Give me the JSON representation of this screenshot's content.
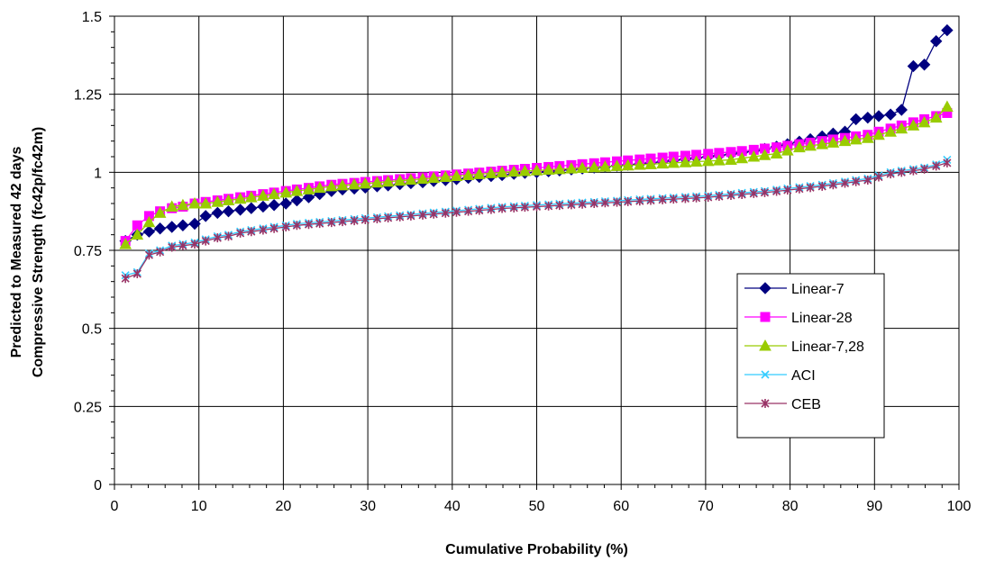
{
  "chart_data": {
    "type": "line",
    "title": "",
    "xlabel": "Cumulative Probability (%)",
    "ylabel_lines": [
      "Predicted to Measured 42 days",
      "Compressive Strength (fc42p/fc42m)"
    ],
    "xlim": [
      0,
      100
    ],
    "ylim": [
      0,
      1.5
    ],
    "x_ticks": [
      0,
      10,
      20,
      30,
      40,
      50,
      60,
      70,
      80,
      90,
      100
    ],
    "x_tick_labels": [
      "0",
      "10",
      "20",
      "30",
      "40",
      "50",
      "60",
      "70",
      "80",
      "90",
      "100"
    ],
    "y_ticks": [
      0,
      0.25,
      0.5,
      0.75,
      1,
      1.25,
      1.5
    ],
    "y_tick_labels": [
      "0",
      "0.25",
      "0.5",
      "0.75",
      "1",
      "1.25",
      "1.5"
    ],
    "grid": true,
    "legend_position": "right-center",
    "series": [
      {
        "name": "Linear-7",
        "color": "#000080",
        "marker": "diamond",
        "x": [
          1.3,
          2.7,
          4.1,
          5.4,
          6.8,
          8.1,
          9.5,
          10.8,
          12.2,
          13.5,
          14.9,
          16.2,
          17.6,
          18.9,
          20.3,
          21.6,
          23.0,
          24.3,
          25.7,
          27.0,
          28.4,
          29.7,
          31.1,
          32.4,
          33.8,
          35.1,
          36.5,
          37.8,
          39.2,
          40.5,
          41.9,
          43.2,
          44.6,
          45.9,
          47.3,
          48.6,
          50.0,
          51.4,
          52.7,
          54.1,
          55.4,
          56.8,
          58.1,
          59.5,
          60.8,
          62.2,
          63.5,
          64.9,
          66.2,
          67.6,
          68.9,
          70.3,
          71.6,
          73.0,
          74.3,
          75.7,
          77.0,
          78.4,
          79.7,
          81.1,
          82.4,
          83.8,
          85.1,
          86.5,
          87.8,
          89.2,
          90.5,
          91.9,
          93.2,
          94.6,
          95.9,
          97.3,
          98.6
        ],
        "y": [
          0.78,
          0.8,
          0.81,
          0.82,
          0.825,
          0.83,
          0.835,
          0.86,
          0.87,
          0.875,
          0.88,
          0.885,
          0.89,
          0.895,
          0.9,
          0.91,
          0.92,
          0.93,
          0.94,
          0.945,
          0.948,
          0.951,
          0.955,
          0.958,
          0.962,
          0.965,
          0.968,
          0.972,
          0.975,
          0.978,
          0.982,
          0.985,
          0.988,
          0.991,
          0.995,
          0.998,
          1.0,
          1.003,
          1.006,
          1.009,
          1.012,
          1.015,
          1.018,
          1.021,
          1.024,
          1.027,
          1.03,
          1.034,
          1.038,
          1.042,
          1.046,
          1.05,
          1.054,
          1.058,
          1.063,
          1.068,
          1.075,
          1.082,
          1.09,
          1.098,
          1.106,
          1.115,
          1.124,
          1.13,
          1.17,
          1.175,
          1.18,
          1.185,
          1.2,
          1.34,
          1.345,
          1.42,
          1.455
        ]
      },
      {
        "name": "Linear-28",
        "color": "#FF00FF",
        "marker": "square",
        "x": [
          1.3,
          2.7,
          4.1,
          5.4,
          6.8,
          8.1,
          9.5,
          10.8,
          12.2,
          13.5,
          14.9,
          16.2,
          17.6,
          18.9,
          20.3,
          21.6,
          23.0,
          24.3,
          25.7,
          27.0,
          28.4,
          29.7,
          31.1,
          32.4,
          33.8,
          35.1,
          36.5,
          37.8,
          39.2,
          40.5,
          41.9,
          43.2,
          44.6,
          45.9,
          47.3,
          48.6,
          50.0,
          51.4,
          52.7,
          54.1,
          55.4,
          56.8,
          58.1,
          59.5,
          60.8,
          62.2,
          63.5,
          64.9,
          66.2,
          67.6,
          68.9,
          70.3,
          71.6,
          73.0,
          74.3,
          75.7,
          77.0,
          78.4,
          79.7,
          81.1,
          82.4,
          83.8,
          85.1,
          86.5,
          87.8,
          89.2,
          90.5,
          91.9,
          93.2,
          94.6,
          95.9,
          97.3,
          98.6
        ],
        "y": [
          0.78,
          0.83,
          0.86,
          0.875,
          0.885,
          0.89,
          0.9,
          0.905,
          0.91,
          0.915,
          0.92,
          0.925,
          0.93,
          0.935,
          0.94,
          0.945,
          0.95,
          0.955,
          0.96,
          0.963,
          0.966,
          0.969,
          0.972,
          0.975,
          0.978,
          0.981,
          0.984,
          0.987,
          0.99,
          0.993,
          0.996,
          0.999,
          1.002,
          1.005,
          1.008,
          1.011,
          1.014,
          1.017,
          1.02,
          1.023,
          1.026,
          1.029,
          1.032,
          1.035,
          1.038,
          1.041,
          1.044,
          1.047,
          1.05,
          1.053,
          1.056,
          1.059,
          1.062,
          1.065,
          1.068,
          1.072,
          1.076,
          1.08,
          1.085,
          1.09,
          1.095,
          1.1,
          1.105,
          1.11,
          1.115,
          1.12,
          1.13,
          1.14,
          1.15,
          1.16,
          1.17,
          1.18,
          1.19
        ]
      },
      {
        "name": "Linear-7,28",
        "color": "#99CC00",
        "marker": "triangle",
        "x": [
          1.3,
          2.7,
          4.1,
          5.4,
          6.8,
          8.1,
          9.5,
          10.8,
          12.2,
          13.5,
          14.9,
          16.2,
          17.6,
          18.9,
          20.3,
          21.6,
          23.0,
          24.3,
          25.7,
          27.0,
          28.4,
          29.7,
          31.1,
          32.4,
          33.8,
          35.1,
          36.5,
          37.8,
          39.2,
          40.5,
          41.9,
          43.2,
          44.6,
          45.9,
          47.3,
          48.6,
          50.0,
          51.4,
          52.7,
          54.1,
          55.4,
          56.8,
          58.1,
          59.5,
          60.8,
          62.2,
          63.5,
          64.9,
          66.2,
          67.6,
          68.9,
          70.3,
          71.6,
          73.0,
          74.3,
          75.7,
          77.0,
          78.4,
          79.7,
          81.1,
          82.4,
          83.8,
          85.1,
          86.5,
          87.8,
          89.2,
          90.5,
          91.9,
          93.2,
          94.6,
          95.9,
          97.3,
          98.6
        ],
        "y": [
          0.77,
          0.8,
          0.84,
          0.87,
          0.89,
          0.895,
          0.9,
          0.9,
          0.905,
          0.91,
          0.915,
          0.92,
          0.925,
          0.93,
          0.935,
          0.94,
          0.945,
          0.95,
          0.955,
          0.958,
          0.961,
          0.964,
          0.967,
          0.97,
          0.973,
          0.976,
          0.979,
          0.982,
          0.985,
          0.988,
          0.991,
          0.994,
          0.997,
          1.0,
          1.002,
          1.004,
          1.006,
          1.008,
          1.01,
          1.012,
          1.014,
          1.016,
          1.018,
          1.02,
          1.022,
          1.024,
          1.026,
          1.028,
          1.03,
          1.032,
          1.034,
          1.036,
          1.038,
          1.04,
          1.045,
          1.05,
          1.055,
          1.06,
          1.07,
          1.08,
          1.085,
          1.09,
          1.095,
          1.1,
          1.105,
          1.11,
          1.12,
          1.13,
          1.14,
          1.15,
          1.16,
          1.175,
          1.21
        ]
      },
      {
        "name": "ACI",
        "color": "#33CCFF",
        "marker": "x",
        "x": [
          1.3,
          2.7,
          4.1,
          5.4,
          6.8,
          8.1,
          9.5,
          10.8,
          12.2,
          13.5,
          14.9,
          16.2,
          17.6,
          18.9,
          20.3,
          21.6,
          23.0,
          24.3,
          25.7,
          27.0,
          28.4,
          29.7,
          31.1,
          32.4,
          33.8,
          35.1,
          36.5,
          37.8,
          39.2,
          40.5,
          41.9,
          43.2,
          44.6,
          45.9,
          47.3,
          48.6,
          50.0,
          51.4,
          52.7,
          54.1,
          55.4,
          56.8,
          58.1,
          59.5,
          60.8,
          62.2,
          63.5,
          64.9,
          66.2,
          67.6,
          68.9,
          70.3,
          71.6,
          73.0,
          74.3,
          75.7,
          77.0,
          78.4,
          79.7,
          81.1,
          82.4,
          83.8,
          85.1,
          86.5,
          87.8,
          89.2,
          90.5,
          91.9,
          93.2,
          94.6,
          95.9,
          97.3,
          98.6
        ],
        "y": [
          0.67,
          0.68,
          0.74,
          0.75,
          0.765,
          0.77,
          0.775,
          0.785,
          0.795,
          0.8,
          0.81,
          0.815,
          0.82,
          0.825,
          0.83,
          0.835,
          0.838,
          0.841,
          0.844,
          0.847,
          0.85,
          0.853,
          0.856,
          0.859,
          0.862,
          0.865,
          0.868,
          0.871,
          0.874,
          0.877,
          0.88,
          0.883,
          0.886,
          0.889,
          0.891,
          0.893,
          0.895,
          0.897,
          0.899,
          0.901,
          0.903,
          0.905,
          0.907,
          0.909,
          0.911,
          0.913,
          0.915,
          0.917,
          0.919,
          0.921,
          0.923,
          0.925,
          0.928,
          0.931,
          0.934,
          0.937,
          0.94,
          0.944,
          0.948,
          0.952,
          0.956,
          0.96,
          0.965,
          0.97,
          0.975,
          0.98,
          0.99,
          1.0,
          1.005,
          1.01,
          1.015,
          1.025,
          1.04
        ]
      },
      {
        "name": "CEB",
        "color": "#993366",
        "marker": "asterisk",
        "x": [
          1.3,
          2.7,
          4.1,
          5.4,
          6.8,
          8.1,
          9.5,
          10.8,
          12.2,
          13.5,
          14.9,
          16.2,
          17.6,
          18.9,
          20.3,
          21.6,
          23.0,
          24.3,
          25.7,
          27.0,
          28.4,
          29.7,
          31.1,
          32.4,
          33.8,
          35.1,
          36.5,
          37.8,
          39.2,
          40.5,
          41.9,
          43.2,
          44.6,
          45.9,
          47.3,
          48.6,
          50.0,
          51.4,
          52.7,
          54.1,
          55.4,
          56.8,
          58.1,
          59.5,
          60.8,
          62.2,
          63.5,
          64.9,
          66.2,
          67.6,
          68.9,
          70.3,
          71.6,
          73.0,
          74.3,
          75.7,
          77.0,
          78.4,
          79.7,
          81.1,
          82.4,
          83.8,
          85.1,
          86.5,
          87.8,
          89.2,
          90.5,
          91.9,
          93.2,
          94.6,
          95.9,
          97.3,
          98.6
        ],
        "y": [
          0.66,
          0.675,
          0.735,
          0.745,
          0.76,
          0.765,
          0.77,
          0.78,
          0.79,
          0.795,
          0.805,
          0.81,
          0.815,
          0.82,
          0.825,
          0.83,
          0.833,
          0.836,
          0.839,
          0.842,
          0.845,
          0.848,
          0.851,
          0.854,
          0.857,
          0.86,
          0.863,
          0.866,
          0.869,
          0.872,
          0.875,
          0.878,
          0.881,
          0.884,
          0.886,
          0.888,
          0.89,
          0.892,
          0.894,
          0.896,
          0.898,
          0.9,
          0.902,
          0.904,
          0.906,
          0.908,
          0.91,
          0.912,
          0.914,
          0.916,
          0.918,
          0.92,
          0.923,
          0.926,
          0.929,
          0.932,
          0.935,
          0.939,
          0.943,
          0.947,
          0.951,
          0.955,
          0.96,
          0.965,
          0.97,
          0.975,
          0.985,
          0.995,
          1.0,
          1.005,
          1.01,
          1.02,
          1.03
        ]
      }
    ]
  }
}
